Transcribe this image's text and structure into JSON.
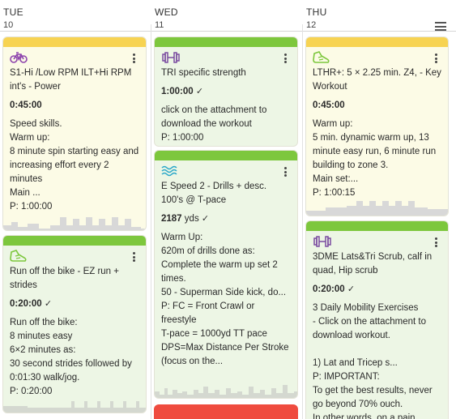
{
  "days": [
    {
      "name": "TUE",
      "date": "10"
    },
    {
      "name": "WED",
      "date": "11"
    },
    {
      "name": "THU",
      "date": "12"
    }
  ],
  "colors": {
    "yellow_bar": "#f7d352",
    "green_bar": "#7dc73d",
    "red_bar": "#ef4b3f",
    "yellow_bg": "#fcfbe6",
    "green_bg": "#edf6e5",
    "bike_icon": "#8e44ad",
    "run_icon": "#7dc73d",
    "swim_icon": "#2aa8c9",
    "strength_icon": "#7a4aa0"
  },
  "cards": {
    "tue1": {
      "icon": "bike-icon",
      "title": "S1-Hi /Low RPM ILT+Hi RPM int's - Power",
      "duration": "0:45:00",
      "desc": "Speed skills.\nWarm up:\n8 minute spin starting easy and increasing effort every 2 minutes\nMain ...",
      "planned": "P: 1:00:00"
    },
    "tue2": {
      "icon": "run-shoe-icon",
      "title": "Run off the bike - EZ run + strides",
      "duration": "0:20:00",
      "desc": "Run off the bike:\n8 minutes easy\n6×2 minutes as:\n30 second strides followed by 0:01:30 walk/jog.",
      "planned": "P: 0:20:00"
    },
    "wed1": {
      "icon": "dumbbell-icon",
      "title": "TRI specific strength",
      "duration": "1:00:00",
      "desc": "click on the attachment to download the workout",
      "planned": "P: 1:00:00"
    },
    "wed2": {
      "icon": "swim-waves-icon",
      "title": "E Speed 2 - Drills + desc. 100's @ T-pace",
      "distance": "2187",
      "distance_unit": "yds",
      "desc": "Warm Up:\n620m of drills done as:\nComplete the warm up set 2 times.\n50 - Superman Side kick, do...",
      "planned": "P: FC = Front Crawl or freestyle\nT-pace = 1000yd TT pace\nDPS=Max Distance Per Stroke (focus on the..."
    },
    "thu1": {
      "icon": "run-shoe-icon",
      "title": "LTHR+: 5 × 2.25 min. Z4, - Key Workout",
      "duration": "0:45:00",
      "desc": "Warm up:\n5 min. dynamic warm up, 13 minute easy run, 6 minute run building to zone 3.\nMain set:...",
      "planned": "P: 1:00:15"
    },
    "thu2": {
      "icon": "dumbbell-icon",
      "title": "3DME Lats&Tri Scrub, calf in quad, Hip scrub",
      "duration": "0:20:00",
      "desc": "3 Daily Mobility Exercises\n- Click on the attachment to download workout.\n\n1) Lat and Tricep s...",
      "planned": "P: IMPORTANT:\nTo get the best results, never go beyond 70% ouch.\nIn other words, on a pain"
    }
  },
  "check_mark": "✓"
}
